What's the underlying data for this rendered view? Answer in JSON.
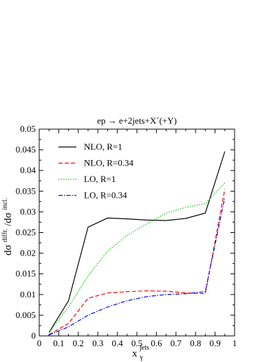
{
  "chart_data": {
    "type": "line",
    "title": "ep → e+2jets+X´(+Y)",
    "xlabel": {
      "base": "x",
      "sub": "γ",
      "sup": "jets"
    },
    "ylabel": {
      "d1": "dσ",
      "sup1": "diffr.",
      "slash": "/dσ",
      "sup2": "incl."
    },
    "xlim": [
      0,
      1
    ],
    "ylim": [
      0,
      0.05
    ],
    "x_ticks": [
      "0",
      "0.1",
      "0.2",
      "0.3",
      "0.4",
      "0.5",
      "0.6",
      "0.7",
      "0.8",
      "0.9",
      "1"
    ],
    "y_ticks": [
      "0",
      "0.005",
      "0.01",
      "0.015",
      "0.02",
      "0.025",
      "0.03",
      "0.035",
      "0.04",
      "0.045",
      "0.05"
    ],
    "grid": false,
    "legend_position": "top-left",
    "series": [
      {
        "name": "NLO, R=1",
        "color": "#000000",
        "dash": "solid",
        "x": [
          0.05,
          0.15,
          0.25,
          0.35,
          0.45,
          0.55,
          0.65,
          0.75,
          0.85,
          0.95
        ],
        "y": [
          0.0008,
          0.0085,
          0.0263,
          0.0285,
          0.0283,
          0.028,
          0.0279,
          0.0284,
          0.0297,
          0.0446
        ]
      },
      {
        "name": "NLO, R=0.34",
        "color": "#ff0000",
        "dash": "dashed",
        "x": [
          0.05,
          0.15,
          0.25,
          0.35,
          0.45,
          0.55,
          0.65,
          0.75,
          0.85,
          0.95
        ],
        "y": [
          0.0003,
          0.003,
          0.0091,
          0.0104,
          0.0107,
          0.0109,
          0.0108,
          0.0104,
          0.0102,
          0.0355
        ]
      },
      {
        "name": "LO, R=1",
        "color": "#00cc00",
        "dash": "dotted",
        "x": [
          0.05,
          0.15,
          0.25,
          0.35,
          0.45,
          0.55,
          0.65,
          0.75,
          0.85,
          0.95
        ],
        "y": [
          0.0008,
          0.007,
          0.0145,
          0.0205,
          0.0243,
          0.0271,
          0.0297,
          0.0311,
          0.032,
          0.037
        ]
      },
      {
        "name": "LO, R=0.34",
        "color": "#0000ff",
        "dash": "dashdot",
        "x": [
          0.05,
          0.15,
          0.25,
          0.35,
          0.45,
          0.55,
          0.65,
          0.75,
          0.85,
          0.95
        ],
        "y": [
          0.0002,
          0.0022,
          0.005,
          0.007,
          0.0085,
          0.0095,
          0.01,
          0.0102,
          0.0107,
          0.0335
        ]
      }
    ]
  }
}
